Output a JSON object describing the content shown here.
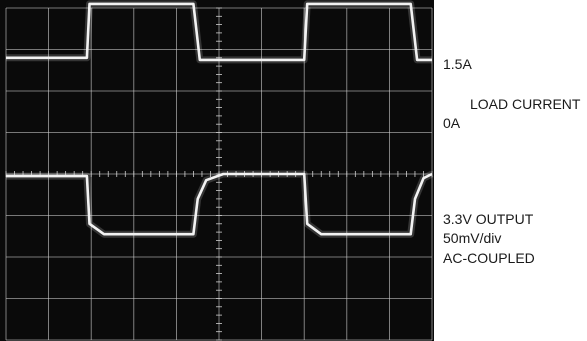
{
  "labels": {
    "current_high": "1.5A",
    "current_title": "LOAD CURRENT",
    "current_zero": "0A",
    "out_title": "3.3V OUTPUT",
    "out_scale": "50mV/div",
    "out_coupling": "AC-COUPLED"
  },
  "chart_data": {
    "type": "line",
    "x_divisions": 10,
    "y_divisions": 8,
    "series": [
      {
        "name": "LOAD CURRENT",
        "color": "#f2f2f2",
        "x": [
          0,
          1.9,
          1.96,
          4.4,
          4.55,
          7.0,
          7.07,
          9.5,
          9.65,
          10
        ],
        "y": [
          2.8,
          2.8,
          4.1,
          4.1,
          2.75,
          2.75,
          4.1,
          4.1,
          2.75,
          2.75
        ]
      },
      {
        "name": "3.3V OUTPUT",
        "color": "#f2f2f2",
        "x": [
          0,
          1.9,
          1.96,
          2.3,
          4.4,
          4.5,
          4.7,
          5.1,
          7.0,
          7.07,
          7.4,
          9.5,
          9.6,
          9.8,
          10
        ],
        "y": [
          -0.05,
          -0.05,
          -1.2,
          -1.45,
          -1.45,
          -0.6,
          -0.15,
          0.0,
          0.0,
          -1.2,
          -1.45,
          -1.45,
          -0.6,
          -0.1,
          0.0
        ]
      }
    ],
    "background": "#0a0a0a",
    "grid": true,
    "grid_color": "#cfcfcf"
  }
}
